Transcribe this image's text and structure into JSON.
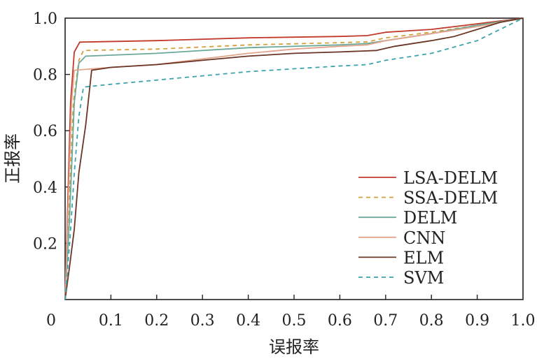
{
  "chart_data": {
    "type": "line",
    "title": "",
    "xlabel": "误报率",
    "ylabel": "正报率",
    "xlim": [
      0,
      1
    ],
    "ylim": [
      0,
      1
    ],
    "xticks": [
      0,
      0.1,
      0.2,
      0.3,
      0.4,
      0.5,
      0.6,
      0.7,
      0.8,
      0.9,
      1.0
    ],
    "xtick_labels": [
      "0",
      "0.1",
      "0.2",
      "0.3",
      "0.4",
      "0.5",
      "0.6",
      "0.7",
      "0.8",
      "0.9",
      "1.0"
    ],
    "yticks": [
      0.2,
      0.4,
      0.6,
      0.8,
      1.0
    ],
    "ytick_labels": [
      "0.2",
      "0.4",
      "0.6",
      "0.8",
      "1.0"
    ],
    "grid": false,
    "legend_position": "bottom-right",
    "series": [
      {
        "name": "LSA-DELM",
        "color": "#c0392b",
        "dash": "solid",
        "points": [
          [
            0,
            0
          ],
          [
            0.005,
            0.3
          ],
          [
            0.012,
            0.7
          ],
          [
            0.02,
            0.88
          ],
          [
            0.032,
            0.915
          ],
          [
            0.2,
            0.92
          ],
          [
            0.4,
            0.93
          ],
          [
            0.6,
            0.935
          ],
          [
            0.66,
            0.938
          ],
          [
            0.7,
            0.95
          ],
          [
            0.75,
            0.955
          ],
          [
            0.8,
            0.96
          ],
          [
            0.85,
            0.97
          ],
          [
            0.9,
            0.98
          ],
          [
            0.95,
            0.99
          ],
          [
            1,
            1
          ]
        ]
      },
      {
        "name": "SSA-DELM",
        "color": "#d4a03a",
        "dash": "6,5",
        "points": [
          [
            0,
            0
          ],
          [
            0.008,
            0.3
          ],
          [
            0.018,
            0.7
          ],
          [
            0.03,
            0.85
          ],
          [
            0.04,
            0.885
          ],
          [
            0.2,
            0.89
          ],
          [
            0.4,
            0.905
          ],
          [
            0.6,
            0.913
          ],
          [
            0.66,
            0.916
          ],
          [
            0.7,
            0.93
          ],
          [
            0.8,
            0.95
          ],
          [
            0.9,
            0.975
          ],
          [
            1,
            1
          ]
        ]
      },
      {
        "name": "DELM",
        "color": "#6aa89a",
        "dash": "solid",
        "points": [
          [
            0,
            0
          ],
          [
            0.01,
            0.3
          ],
          [
            0.02,
            0.7
          ],
          [
            0.03,
            0.84
          ],
          [
            0.045,
            0.865
          ],
          [
            0.2,
            0.875
          ],
          [
            0.4,
            0.895
          ],
          [
            0.6,
            0.905
          ],
          [
            0.66,
            0.91
          ],
          [
            0.7,
            0.92
          ],
          [
            0.8,
            0.945
          ],
          [
            0.9,
            0.975
          ],
          [
            1,
            1
          ]
        ]
      },
      {
        "name": "CNN",
        "color": "#e2a48c",
        "dash": "solid",
        "points": [
          [
            0,
            0
          ],
          [
            0.006,
            0.3
          ],
          [
            0.014,
            0.7
          ],
          [
            0.02,
            0.815
          ],
          [
            0.1,
            0.825
          ],
          [
            0.2,
            0.835
          ],
          [
            0.3,
            0.855
          ],
          [
            0.4,
            0.875
          ],
          [
            0.5,
            0.89
          ],
          [
            0.6,
            0.9
          ],
          [
            0.66,
            0.905
          ],
          [
            0.7,
            0.92
          ],
          [
            0.8,
            0.945
          ],
          [
            0.9,
            0.97
          ],
          [
            1,
            1
          ]
        ]
      },
      {
        "name": "ELM",
        "color": "#6b3526",
        "dash": "solid",
        "points": [
          [
            0,
            0
          ],
          [
            0.01,
            0.12
          ],
          [
            0.02,
            0.25
          ],
          [
            0.03,
            0.45
          ],
          [
            0.045,
            0.62
          ],
          [
            0.058,
            0.815
          ],
          [
            0.1,
            0.825
          ],
          [
            0.2,
            0.835
          ],
          [
            0.3,
            0.85
          ],
          [
            0.4,
            0.865
          ],
          [
            0.5,
            0.875
          ],
          [
            0.6,
            0.88
          ],
          [
            0.68,
            0.885
          ],
          [
            0.72,
            0.9
          ],
          [
            0.8,
            0.92
          ],
          [
            0.85,
            0.935
          ],
          [
            0.9,
            0.96
          ],
          [
            0.95,
            0.985
          ],
          [
            1,
            1
          ]
        ]
      },
      {
        "name": "SVM",
        "color": "#3aa3ad",
        "dash": "6,5",
        "points": [
          [
            0,
            0
          ],
          [
            0.01,
            0.2
          ],
          [
            0.02,
            0.45
          ],
          [
            0.03,
            0.65
          ],
          [
            0.04,
            0.755
          ],
          [
            0.1,
            0.765
          ],
          [
            0.2,
            0.78
          ],
          [
            0.3,
            0.795
          ],
          [
            0.4,
            0.81
          ],
          [
            0.5,
            0.82
          ],
          [
            0.6,
            0.83
          ],
          [
            0.66,
            0.835
          ],
          [
            0.7,
            0.85
          ],
          [
            0.8,
            0.875
          ],
          [
            0.9,
            0.92
          ],
          [
            0.95,
            0.96
          ],
          [
            1,
            1
          ]
        ]
      }
    ]
  }
}
